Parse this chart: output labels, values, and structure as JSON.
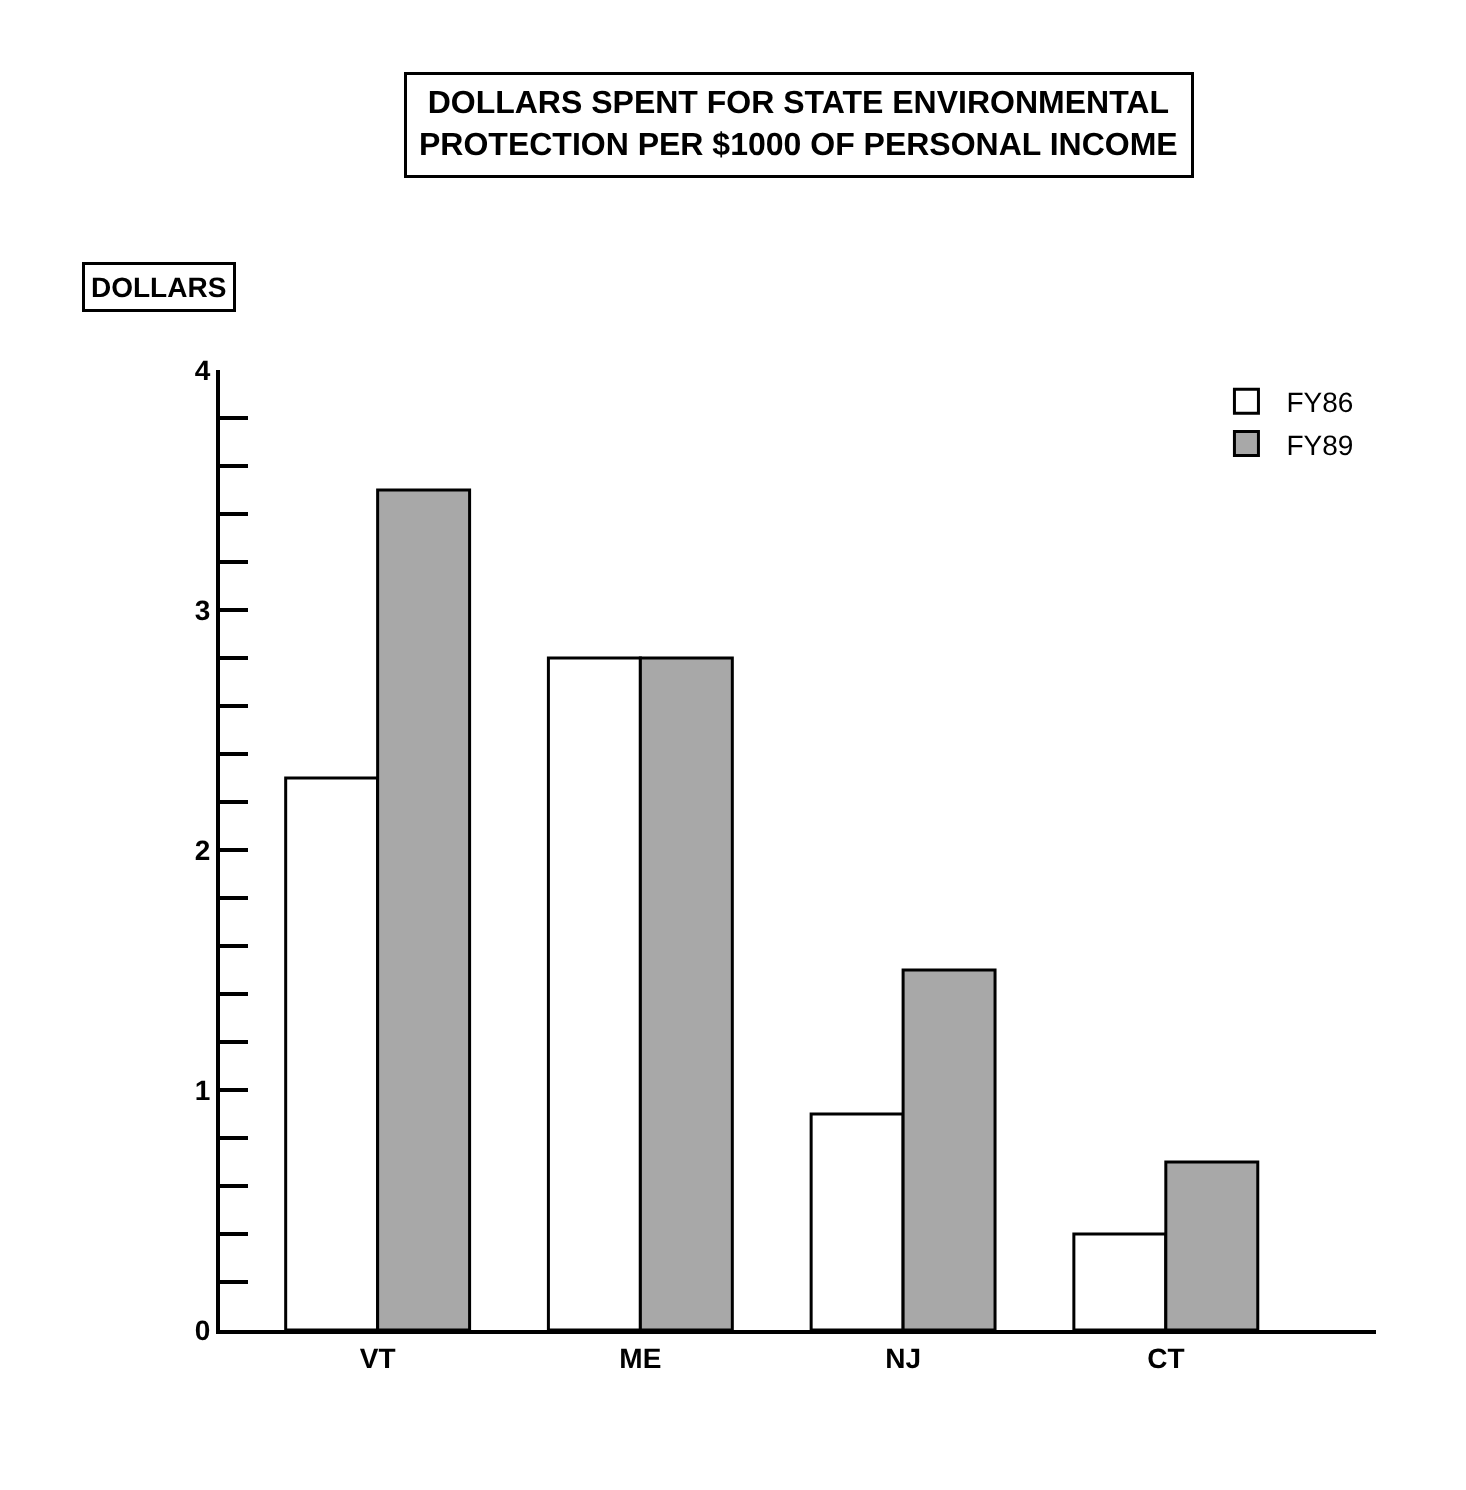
{
  "chart_data": {
    "type": "bar",
    "title": "DOLLARS SPENT FOR STATE ENVIRONMENTAL\nPROTECTION PER $1000 OF PERSONAL INCOME",
    "ylabel": "DOLLARS",
    "categories": [
      "VT",
      "ME",
      "NJ",
      "CT"
    ],
    "series": [
      {
        "name": "FY86",
        "color": "#ffffff",
        "values": [
          2.3,
          2.8,
          0.9,
          0.4
        ]
      },
      {
        "name": "FY89",
        "color": "#a8a8a8",
        "values": [
          3.5,
          2.8,
          1.5,
          0.7
        ]
      }
    ],
    "ylim": [
      0,
      4
    ],
    "yticks": [
      0,
      {
        "value": 0.2,
        "label": null
      },
      {
        "value": 0.4,
        "label": null
      },
      {
        "value": 0.6,
        "label": null
      },
      {
        "value": 0.8,
        "label": null
      },
      1,
      {
        "value": 1.2,
        "label": null
      },
      {
        "value": 1.4,
        "label": null
      },
      {
        "value": 1.6,
        "label": null
      },
      {
        "value": 1.8,
        "label": null
      },
      2,
      {
        "value": 2.2,
        "label": null
      },
      {
        "value": 2.4,
        "label": null
      },
      {
        "value": 2.6,
        "label": null
      },
      {
        "value": 2.8,
        "label": null
      },
      3,
      {
        "value": 3.2,
        "label": null
      },
      {
        "value": 3.4,
        "label": null
      },
      {
        "value": 3.6,
        "label": null
      },
      {
        "value": 3.8,
        "label": null
      },
      4
    ],
    "legend": "top right",
    "grid": false
  }
}
